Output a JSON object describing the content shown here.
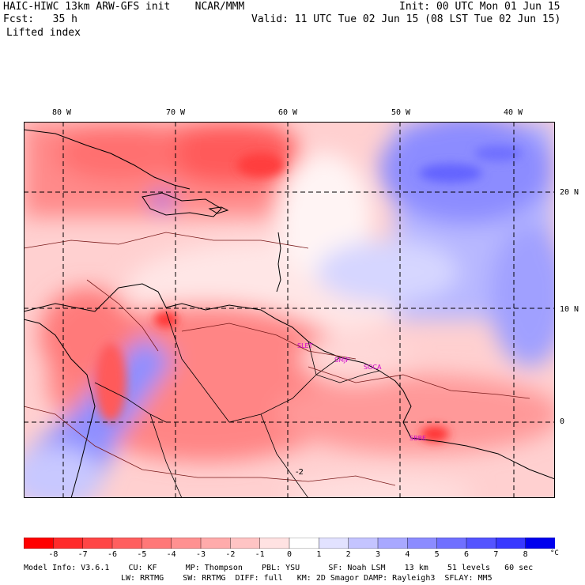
{
  "header": {
    "title": "HAIC-HIWC 13km ARW-GFS init    NCAR/MMM",
    "init": "Init: 00 UTC Mon 01 Jun 15",
    "fcst": "Fcst:   35 h",
    "valid": "Valid: 11 UTC Tue 02 Jun 15 (08 LST Tue 02 Jun 15)",
    "field": "Lifted index"
  },
  "map": {
    "lon_labels": [
      "80 W",
      "70 W",
      "60 W",
      "50 W",
      "40 W"
    ],
    "lat_labels": [
      "20 N",
      "10 N",
      "0"
    ],
    "contour_label": "-2",
    "sites": [
      "SLET",
      "SMJP",
      "SOCA",
      "SBBE"
    ]
  },
  "colorbar": {
    "ticks": [
      "-8",
      "-7",
      "-6",
      "-5",
      "-4",
      "-3",
      "-2",
      "-1",
      "0",
      "1",
      "2",
      "3",
      "4",
      "5",
      "6",
      "7",
      "8"
    ],
    "unit": "°C",
    "colors": [
      "#ff0000",
      "#ff2a2a",
      "#ff4646",
      "#ff5f5f",
      "#ff7878",
      "#ff9191",
      "#ffabab",
      "#ffc4c4",
      "#ffe2e2",
      "#ffffff",
      "#e2e2ff",
      "#c4c4ff",
      "#a8a8ff",
      "#8c8cff",
      "#7070ff",
      "#5454ff",
      "#3838ff",
      "#0000ee"
    ]
  },
  "footer": {
    "line1": "Model Info: V3.6.1    CU: KF      MP: Thompson    PBL: YSU      SF: Noah LSM    13 km    51 levels   60 sec",
    "line2": "LW: RRTMG    SW: RRTMG  DIFF: full   KM: 2D Smagor DAMP: Rayleigh3  SFLAY: MM5"
  }
}
